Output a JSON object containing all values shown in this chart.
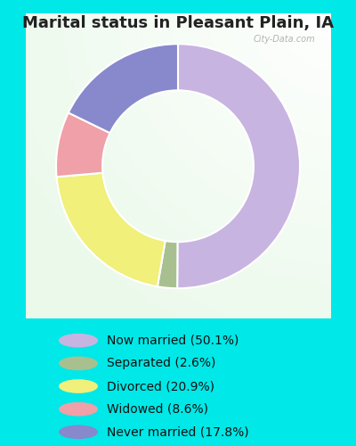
{
  "title": "Marital status in Pleasant Plain, IA",
  "slices": [
    50.1,
    2.6,
    20.9,
    8.6,
    17.8
  ],
  "labels": [
    "Now married (50.1%)",
    "Separated (2.6%)",
    "Divorced (20.9%)",
    "Widowed (8.6%)",
    "Never married (17.8%)"
  ],
  "colors": [
    "#c8b4e0",
    "#a8c090",
    "#f0f07a",
    "#f0a0a8",
    "#8888cc"
  ],
  "legend_colors": [
    "#c8b4e0",
    "#a8c090",
    "#f0f07a",
    "#f0a0a8",
    "#8888cc"
  ],
  "cyan_bg": "#00e8e8",
  "title_fontsize": 13,
  "watermark": "City-Data.com",
  "donut_width": 0.38
}
